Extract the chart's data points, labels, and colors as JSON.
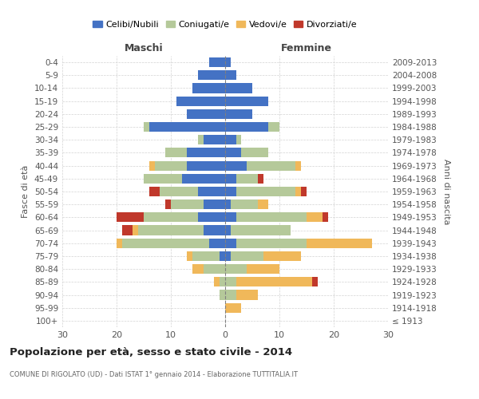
{
  "age_groups": [
    "100+",
    "95-99",
    "90-94",
    "85-89",
    "80-84",
    "75-79",
    "70-74",
    "65-69",
    "60-64",
    "55-59",
    "50-54",
    "45-49",
    "40-44",
    "35-39",
    "30-34",
    "25-29",
    "20-24",
    "15-19",
    "10-14",
    "5-9",
    "0-4"
  ],
  "birth_years": [
    "≤ 1913",
    "1914-1918",
    "1919-1923",
    "1924-1928",
    "1929-1933",
    "1934-1938",
    "1939-1943",
    "1944-1948",
    "1949-1953",
    "1954-1958",
    "1959-1963",
    "1964-1968",
    "1969-1973",
    "1974-1978",
    "1979-1983",
    "1984-1988",
    "1989-1993",
    "1994-1998",
    "1999-2003",
    "2004-2008",
    "2009-2013"
  ],
  "male": {
    "celibi": [
      0,
      0,
      0,
      0,
      0,
      1,
      3,
      4,
      5,
      4,
      5,
      8,
      7,
      7,
      4,
      14,
      7,
      9,
      6,
      5,
      3
    ],
    "coniugati": [
      0,
      0,
      1,
      1,
      4,
      5,
      16,
      12,
      10,
      6,
      7,
      7,
      6,
      4,
      1,
      1,
      0,
      0,
      0,
      0,
      0
    ],
    "vedovi": [
      0,
      0,
      0,
      1,
      2,
      1,
      1,
      1,
      0,
      0,
      0,
      0,
      1,
      0,
      0,
      0,
      0,
      0,
      0,
      0,
      0
    ],
    "divorziati": [
      0,
      0,
      0,
      0,
      0,
      0,
      0,
      2,
      5,
      1,
      2,
      0,
      0,
      0,
      0,
      0,
      0,
      0,
      0,
      0,
      0
    ]
  },
  "female": {
    "nubili": [
      0,
      0,
      0,
      0,
      0,
      1,
      2,
      1,
      2,
      1,
      2,
      2,
      4,
      3,
      2,
      8,
      5,
      8,
      5,
      2,
      1
    ],
    "coniugate": [
      0,
      0,
      2,
      2,
      4,
      6,
      13,
      11,
      13,
      5,
      11,
      4,
      9,
      5,
      1,
      2,
      0,
      0,
      0,
      0,
      0
    ],
    "vedove": [
      0,
      3,
      4,
      14,
      6,
      7,
      12,
      0,
      3,
      2,
      1,
      0,
      1,
      0,
      0,
      0,
      0,
      0,
      0,
      0,
      0
    ],
    "divorziate": [
      0,
      0,
      0,
      1,
      0,
      0,
      0,
      0,
      1,
      0,
      1,
      1,
      0,
      0,
      0,
      0,
      0,
      0,
      0,
      0,
      0
    ]
  },
  "colors": {
    "celibi": "#4472c4",
    "coniugati": "#b5c99a",
    "vedovi": "#f0b85a",
    "divorziati": "#c0382b"
  },
  "xlim": 30,
  "title": "Popolazione per età, sesso e stato civile - 2014",
  "subtitle": "COMUNE DI RIGOLATO (UD) - Dati ISTAT 1° gennaio 2014 - Elaborazione TUTTITALIA.IT",
  "ylabel_left": "Fasce di età",
  "ylabel_right": "Anni di nascita",
  "legend_labels": [
    "Celibi/Nubili",
    "Coniugati/e",
    "Vedovi/e",
    "Divorziati/e"
  ]
}
